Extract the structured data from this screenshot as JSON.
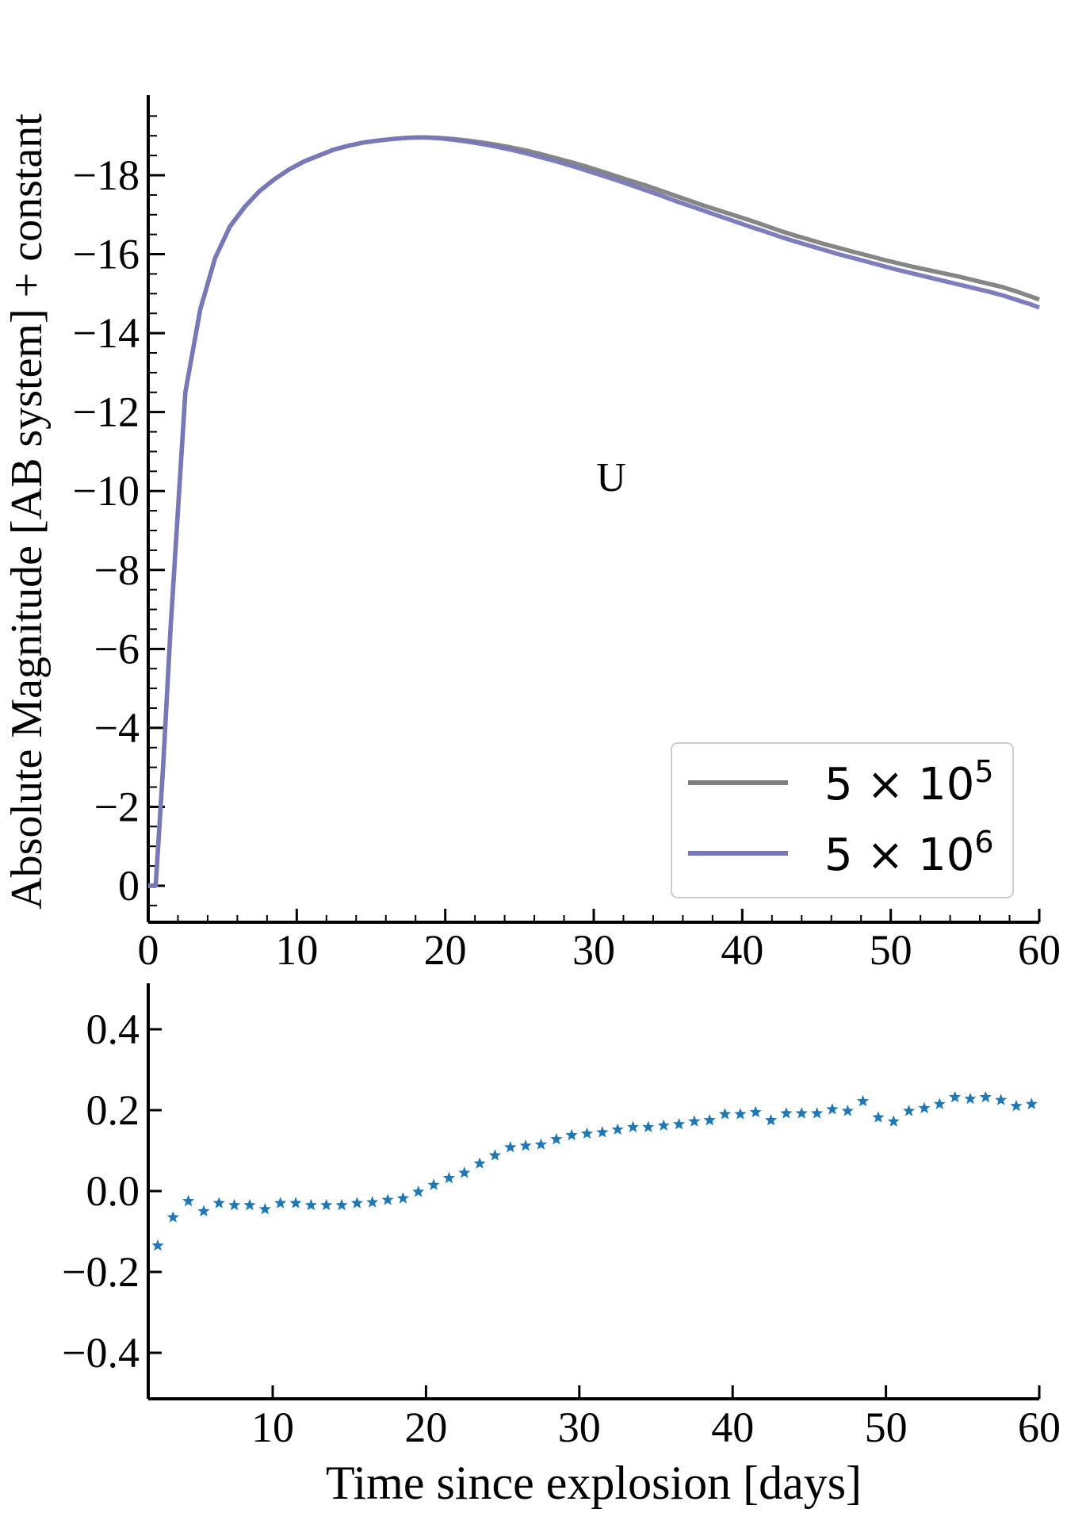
{
  "colors": {
    "series_a": "#7f7f7f",
    "series_b": "#7777bb",
    "residual": "#1f77b4",
    "axis": "#000000"
  },
  "labels": {
    "ylabel": "Absolute Magnitude [AB system] + constant",
    "xlabel": "Time since explosion [days]",
    "band": "U"
  },
  "legend": {
    "placement": "lower-right",
    "entries": [
      {
        "base": "5 × 10",
        "exp": "5"
      },
      {
        "base": "5 × 10",
        "exp": "6"
      }
    ]
  },
  "chart_data": [
    {
      "type": "line",
      "ylim": [
        0.9,
        -20
      ],
      "xlim": [
        0,
        60
      ],
      "y_inverted": true,
      "xticks": [
        "0",
        "10",
        "20",
        "30",
        "40",
        "50",
        "60"
      ],
      "yticks": [
        "0",
        "−2",
        "−4",
        "−6",
        "−8",
        "−10",
        "−12",
        "−14",
        "−16",
        "−18"
      ],
      "x": [
        0,
        0.5,
        1,
        1.5,
        2.5,
        3.5,
        4.5,
        5.5,
        6.5,
        7.5,
        8.5,
        9.5,
        10.5,
        11.5,
        12.5,
        13.5,
        14.5,
        15.5,
        16.5,
        17.5,
        18.5,
        19.5,
        20.5,
        21.5,
        22.5,
        23.5,
        24.5,
        25.5,
        26.5,
        27.5,
        28.5,
        29.5,
        30.5,
        31.5,
        32.5,
        33.5,
        34.5,
        35.5,
        36.5,
        37.5,
        38.5,
        39.5,
        40.5,
        41.5,
        42.5,
        43.5,
        44.5,
        45.5,
        46.5,
        47.5,
        48.5,
        49.5,
        50.5,
        51.5,
        52.5,
        53.5,
        54.5,
        55.5,
        56.5,
        57.5,
        58.5,
        59.5,
        60
      ],
      "series": [
        {
          "name": "5 × 10^5",
          "color": "#7f7f7f",
          "values": [
            0,
            0,
            -3.0,
            -6.5,
            -12.5,
            -14.6,
            -15.9,
            -16.7,
            -17.2,
            -17.6,
            -17.9,
            -18.15,
            -18.35,
            -18.5,
            -18.65,
            -18.75,
            -18.83,
            -18.88,
            -18.92,
            -18.95,
            -18.96,
            -18.95,
            -18.92,
            -18.88,
            -18.83,
            -18.77,
            -18.7,
            -18.62,
            -18.53,
            -18.43,
            -18.33,
            -18.22,
            -18.1,
            -17.98,
            -17.86,
            -17.74,
            -17.61,
            -17.48,
            -17.35,
            -17.22,
            -17.1,
            -16.98,
            -16.86,
            -16.73,
            -16.6,
            -16.48,
            -16.37,
            -16.26,
            -16.16,
            -16.06,
            -15.96,
            -15.86,
            -15.77,
            -15.68,
            -15.6,
            -15.52,
            -15.44,
            -15.35,
            -15.26,
            -15.17,
            -15.05,
            -14.92,
            -14.85
          ]
        },
        {
          "name": "5 × 10^6",
          "color": "#7777bb",
          "values": [
            0,
            0,
            -3.0,
            -6.5,
            -12.5,
            -14.6,
            -15.9,
            -16.7,
            -17.2,
            -17.6,
            -17.9,
            -18.15,
            -18.35,
            -18.5,
            -18.65,
            -18.75,
            -18.83,
            -18.88,
            -18.92,
            -18.95,
            -18.96,
            -18.94,
            -18.9,
            -18.85,
            -18.79,
            -18.72,
            -18.64,
            -18.55,
            -18.45,
            -18.35,
            -18.24,
            -18.12,
            -18.0,
            -17.88,
            -17.75,
            -17.62,
            -17.49,
            -17.35,
            -17.22,
            -17.09,
            -16.96,
            -16.83,
            -16.7,
            -16.58,
            -16.45,
            -16.33,
            -16.22,
            -16.11,
            -16.0,
            -15.9,
            -15.8,
            -15.7,
            -15.6,
            -15.51,
            -15.42,
            -15.33,
            -15.24,
            -15.15,
            -15.06,
            -14.96,
            -14.84,
            -14.72,
            -14.65
          ]
        }
      ]
    },
    {
      "type": "scatter",
      "marker": "star",
      "xlim": [
        2,
        60
      ],
      "ylim": [
        -0.5,
        0.5
      ],
      "xticks": [
        "10",
        "20",
        "30",
        "40",
        "50",
        "60"
      ],
      "yticks": [
        "0.4",
        "0.2",
        "0.0",
        "−0.2",
        "−0.4"
      ],
      "x": [
        2.5,
        3.5,
        4.5,
        5.5,
        6.5,
        7.5,
        8.5,
        9.5,
        10.5,
        11.5,
        12.5,
        13.5,
        14.5,
        15.5,
        16.5,
        17.5,
        18.5,
        19.5,
        20.5,
        21.5,
        22.5,
        23.5,
        24.5,
        25.5,
        26.5,
        27.5,
        28.5,
        29.5,
        30.5,
        31.5,
        32.5,
        33.5,
        34.5,
        35.5,
        36.5,
        37.5,
        38.5,
        39.5,
        40.5,
        41.5,
        42.5,
        43.5,
        44.5,
        45.5,
        46.5,
        47.5,
        48.5,
        49.5,
        50.5,
        51.5,
        52.5,
        53.5,
        54.5,
        55.5,
        56.5,
        57.5,
        58.5,
        59.5
      ],
      "y": [
        -0.135,
        -0.065,
        -0.025,
        -0.05,
        -0.03,
        -0.035,
        -0.035,
        -0.045,
        -0.03,
        -0.03,
        -0.035,
        -0.035,
        -0.035,
        -0.03,
        -0.028,
        -0.022,
        -0.018,
        -0.002,
        0.015,
        0.032,
        0.045,
        0.068,
        0.088,
        0.108,
        0.112,
        0.115,
        0.128,
        0.138,
        0.142,
        0.145,
        0.152,
        0.158,
        0.158,
        0.162,
        0.165,
        0.172,
        0.175,
        0.19,
        0.19,
        0.195,
        0.175,
        0.192,
        0.192,
        0.192,
        0.202,
        0.198,
        0.222,
        0.182,
        0.172,
        0.198,
        0.205,
        0.215,
        0.232,
        0.228,
        0.232,
        0.225,
        0.21,
        0.215
      ]
    }
  ]
}
